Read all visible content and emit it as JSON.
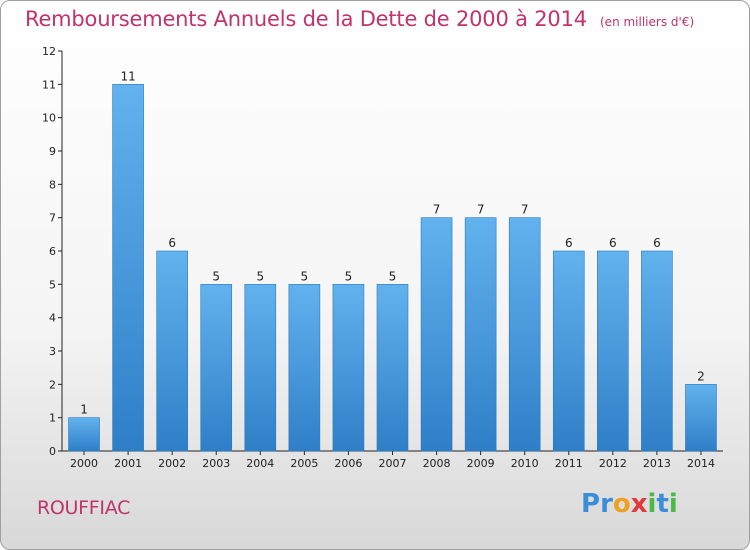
{
  "chart_data": {
    "type": "bar",
    "title": "Remboursements Annuels de la Dette de 2000 à 2014",
    "subtitle": "(en milliers d'€)",
    "categories": [
      "2000",
      "2001",
      "2002",
      "2003",
      "2004",
      "2005",
      "2006",
      "2007",
      "2008",
      "2009",
      "2010",
      "2011",
      "2012",
      "2013",
      "2014"
    ],
    "values": [
      1,
      11,
      6,
      5,
      5,
      5,
      5,
      5,
      7,
      7,
      7,
      6,
      6,
      6,
      2
    ],
    "xlabel": "",
    "ylabel": "",
    "ylim": [
      0,
      12
    ],
    "yticks": [
      0,
      1,
      2,
      3,
      4,
      5,
      6,
      7,
      8,
      9,
      10,
      11,
      12
    ],
    "grid": false,
    "bar_color": "#4a9ee0"
  },
  "commune": "ROUFFIAC",
  "logo": {
    "letters": [
      "P",
      "r",
      "o",
      "x",
      "i",
      "t",
      "i"
    ],
    "colors": [
      "#3a8ed8",
      "#3a8ed8",
      "#f0a020",
      "#e03a3a",
      "#4cb848",
      "#3a8ed8",
      "#4cb848"
    ]
  }
}
